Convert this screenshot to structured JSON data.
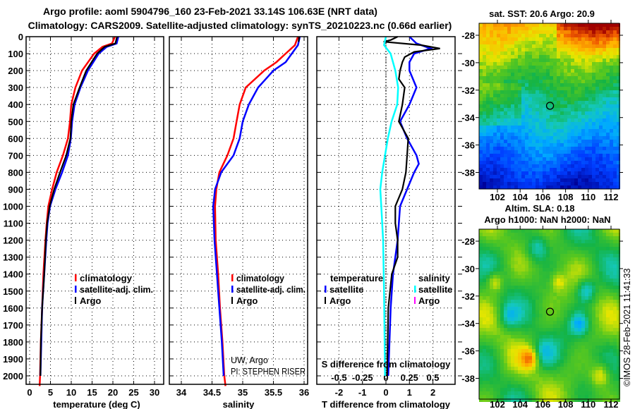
{
  "header": {
    "title_line1": "Argo profile: aoml 5904796_160 23-Feb-2021 33.14S 106.63E (NRT data)",
    "title_line2": "Climatology: CARS2009. Satellite-adjusted climatology: synTS_20210223.nc (0.66d earlier)"
  },
  "colors": {
    "climatology": "#ff0000",
    "satellite": "#0000ff",
    "argo": "#000000",
    "s_satellite": "#00ffff",
    "s_argo": "#ff00ff"
  },
  "chart_data": [
    {
      "type": "line",
      "name": "temperature-profile",
      "xlabel": "temperature (deg C)",
      "ylabel": "depth",
      "xlim": [
        -1,
        32
      ],
      "ylim": [
        2060,
        0
      ],
      "xticks": [
        "0",
        "5",
        "10",
        "15",
        "20",
        "25",
        "30"
      ],
      "xtick_values": [
        0,
        5,
        10,
        15,
        20,
        25,
        30
      ],
      "yticks": [
        "0",
        "100",
        "200",
        "300",
        "400",
        "500",
        "600",
        "700",
        "800",
        "900",
        "1000",
        "1100",
        "1200",
        "1300",
        "1400",
        "1500",
        "1600",
        "1700",
        "1800",
        "1900",
        "2000"
      ],
      "grid": true,
      "legend": [
        "climatology",
        "satellite-adj. clim.",
        "Argo"
      ],
      "series": [
        {
          "name": "climatology",
          "color": "#ff0000",
          "depth": [
            0,
            40,
            60,
            100,
            200,
            300,
            400,
            500,
            600,
            700,
            800,
            900,
            1000,
            1100,
            1200,
            1400,
            1600,
            1800,
            2000,
            2060
          ],
          "values": [
            20.5,
            19.8,
            17.5,
            15.5,
            12.6,
            11.0,
            10.0,
            9.7,
            9.2,
            8.0,
            6.5,
            5.4,
            4.5,
            4.1,
            3.8,
            3.3,
            3.0,
            2.7,
            2.5,
            2.4
          ]
        },
        {
          "name": "satellite-adj. clim.",
          "color": "#0000ff",
          "depth": [
            0,
            40,
            60,
            100,
            200,
            300,
            400,
            500,
            600,
            700,
            800,
            900,
            1000,
            1100,
            1200,
            1400,
            1600,
            1800,
            2000
          ],
          "values": [
            21.3,
            20.9,
            18.5,
            16.6,
            14.0,
            12.2,
            10.8,
            10.2,
            9.9,
            9.2,
            7.8,
            6.2,
            4.9,
            4.3,
            4.0,
            3.5,
            3.0,
            2.8,
            2.6
          ]
        },
        {
          "name": "Argo",
          "color": "#000000",
          "depth": [
            0,
            40,
            60,
            100,
            200,
            300,
            400,
            500,
            600,
            700,
            800,
            900,
            1000,
            1100,
            1200,
            1400,
            1600,
            1800,
            2000
          ],
          "values": [
            21.0,
            20.6,
            18.0,
            16.2,
            13.6,
            12.0,
            10.5,
            10.0,
            9.8,
            8.8,
            7.3,
            5.9,
            4.8,
            4.2,
            3.9,
            3.5,
            3.0,
            2.7,
            2.6
          ]
        }
      ]
    },
    {
      "type": "line",
      "name": "salinity-profile",
      "xlabel": "salinity",
      "xlim": [
        33.8,
        36.1
      ],
      "ylim": [
        2060,
        0
      ],
      "xticks": [
        "34",
        "34.5",
        "35",
        "35.5",
        "36"
      ],
      "xtick_values": [
        34,
        34.5,
        35,
        35.5,
        36
      ],
      "grid": true,
      "legend": [
        "climatology",
        "satellite-adj. clim.",
        "Argo"
      ],
      "series": [
        {
          "name": "climatology",
          "color": "#ff0000",
          "depth": [
            0,
            50,
            100,
            150,
            200,
            300,
            400,
            500,
            600,
            700,
            800,
            900,
            1000,
            1200,
            1400,
            1600,
            1800,
            2000,
            2060
          ],
          "values": [
            35.9,
            35.85,
            35.7,
            35.55,
            35.35,
            35.05,
            34.95,
            34.9,
            34.85,
            34.75,
            34.62,
            34.57,
            34.55,
            34.56,
            34.6,
            34.63,
            34.67,
            34.7,
            34.72
          ]
        },
        {
          "name": "satellite-adj. clim.",
          "color": "#0000ff",
          "depth": [
            0,
            50,
            100,
            150,
            200,
            300,
            400,
            500,
            600,
            700,
            800,
            900,
            1000,
            1200,
            1400,
            1600,
            1800,
            2000
          ],
          "values": [
            35.93,
            35.9,
            35.8,
            35.7,
            35.5,
            35.25,
            35.1,
            35.0,
            34.95,
            34.85,
            34.65,
            34.55,
            34.52,
            34.54,
            34.58,
            34.62,
            34.66,
            34.69
          ]
        },
        {
          "name": "Argo",
          "color": "#000000",
          "depth": [
            0,
            30
          ],
          "values": [
            35.92,
            35.91
          ]
        }
      ]
    },
    {
      "type": "line",
      "name": "difference-profile",
      "xlabel": "T difference from climatology",
      "x2label": "S difference from climatology",
      "xlim": [
        -3,
        3
      ],
      "ylim": [
        2060,
        0
      ],
      "xticks": [
        "-2",
        "-1",
        "0",
        "1",
        "2"
      ],
      "xtick_values": [
        -2,
        -1,
        0,
        1,
        2
      ],
      "x2ticks": [
        "-0.5",
        "-0.25",
        "0",
        "0.25",
        "0.5"
      ],
      "x2tick_values": [
        -0.5,
        -0.25,
        0,
        0.25,
        0.5
      ],
      "grid": true,
      "legend": {
        "temperature_title": "temperature",
        "salinity_title": "salinity",
        "items": [
          "satellite",
          "Argo",
          "satellite",
          "Argo"
        ]
      },
      "series": [
        {
          "name": "T satellite",
          "color": "#0000ff",
          "depth": [
            0,
            40,
            70,
            100,
            150,
            200,
            300,
            400,
            500,
            600,
            700,
            750,
            800,
            900,
            1000,
            1200,
            1400,
            1600,
            2000
          ],
          "values": [
            1.0,
            1.3,
            1.9,
            1.2,
            1.0,
            1.0,
            1.3,
            1.0,
            0.6,
            0.9,
            1.3,
            1.4,
            1.2,
            0.9,
            0.6,
            0.5,
            0.3,
            0.2,
            0.1
          ]
        },
        {
          "name": "T Argo",
          "color": "#000000",
          "depth": [
            0,
            20,
            30,
            50,
            70,
            90,
            120,
            150,
            200,
            250,
            300,
            400,
            500,
            600,
            700,
            800,
            900,
            1000,
            1100,
            1200,
            1300,
            1400,
            1600,
            2000
          ],
          "values": [
            0.5,
            0.2,
            -0.1,
            1.5,
            2.3,
            1.2,
            0.8,
            0.7,
            0.6,
            0.55,
            0.8,
            0.7,
            0.55,
            0.95,
            0.9,
            0.85,
            0.7,
            0.4,
            0.4,
            0.5,
            0.5,
            0.25,
            0.1,
            0.05
          ]
        },
        {
          "name": "S satellite",
          "color": "#00ffff",
          "unit": "S",
          "depth": [
            0,
            50,
            100,
            200,
            300,
            400,
            500,
            600,
            700,
            800,
            900,
            1000,
            1200,
            1500,
            2000
          ],
          "values": [
            0.0,
            -0.02,
            0.05,
            0.1,
            0.13,
            0.12,
            0.06,
            0.02,
            -0.01,
            -0.04,
            -0.06,
            -0.05,
            -0.03,
            -0.02,
            -0.01
          ]
        }
      ]
    }
  ],
  "credits": {
    "line1": "UW, Argo",
    "line2": "PI: STEPHEN RISER"
  },
  "maps": {
    "sst": {
      "title": "sat. SST: 20.6 Argo: 20.9",
      "xticks": [
        "102",
        "104",
        "106",
        "108",
        "110",
        "112"
      ],
      "yticks": [
        "-28",
        "-30",
        "-32",
        "-34",
        "-36",
        "-38"
      ],
      "argo_lon": 106.63,
      "argo_lat": -33.14
    },
    "sla": {
      "title_line1": "Altim. SLA: 0.18",
      "title_line2": "Argo h1000: NaN h2000: NaN",
      "xticks": [
        "102",
        "104",
        "106",
        "108",
        "110",
        "112"
      ],
      "yticks": [
        "-28",
        "-30",
        "-32",
        "-34",
        "-36",
        "-38"
      ],
      "argo_lon": 106.63,
      "argo_lat": -33.14
    }
  },
  "footer": {
    "stamp": "©IMOS 28-Feb-2021 11:41:33"
  }
}
